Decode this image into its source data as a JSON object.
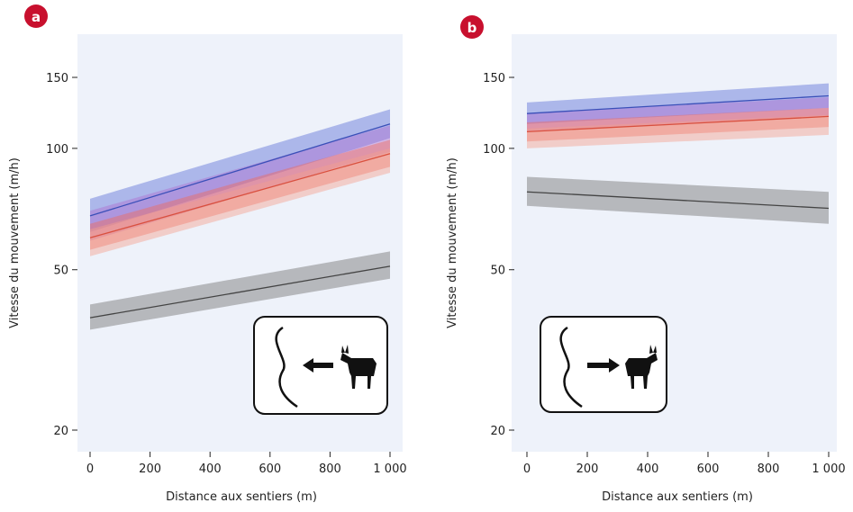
{
  "colors": {
    "blue": "#5a6fd8",
    "purple": "#b06fd0",
    "red": "#ef6a5a",
    "salmon": "#f3a08d",
    "gray": "#707070",
    "panel_bg": "#eef2fa",
    "badge": "#c8102e"
  },
  "chart_data": [
    {
      "panel_label": "a",
      "type": "line",
      "xlabel": "Distance aux sentiers (m)",
      "ylabel": "Vitesse du mouvement (m/h)",
      "x_ticks": [
        "0",
        "200",
        "400",
        "600",
        "800",
        "1 000"
      ],
      "y_ticks": [
        "20",
        "50",
        "100",
        "150"
      ],
      "y_scale": "log",
      "xlim": [
        0,
        1000
      ],
      "ylim": [
        17,
        200
      ],
      "inset_icon": "chamois-moving-toward-trail-icon",
      "series": [
        {
          "color": "#5a6fd8",
          "x": [
            0,
            1000
          ],
          "y": [
            68,
            115
          ],
          "lower": [
            62,
            106
          ],
          "upper": [
            75,
            125
          ]
        },
        {
          "color": "#b06fd0",
          "x": [
            0,
            1000
          ],
          "y": [
            64,
            106
          ],
          "lower": [
            59,
            98
          ],
          "upper": [
            70,
            114
          ]
        },
        {
          "color": "#ef6a5a",
          "x": [
            0,
            1000
          ],
          "y": [
            60,
            97
          ],
          "lower": [
            56,
            90
          ],
          "upper": [
            65,
            105
          ]
        },
        {
          "color": "#f3a08d",
          "x": [
            0,
            1000
          ],
          "y": [
            58,
            93
          ],
          "lower": [
            54,
            87
          ],
          "upper": [
            63,
            100
          ]
        },
        {
          "color": "#707070",
          "x": [
            0,
            1000
          ],
          "y": [
            38,
            51
          ],
          "lower": [
            35.5,
            47.5
          ],
          "upper": [
            41,
            55.5
          ]
        }
      ]
    },
    {
      "panel_label": "b",
      "type": "line",
      "xlabel": "Distance aux sentiers (m)",
      "ylabel": "Vitesse du mouvement (m/h)",
      "x_ticks": [
        "0",
        "200",
        "400",
        "600",
        "800",
        "1 000"
      ],
      "y_ticks": [
        "20",
        "50",
        "100",
        "150"
      ],
      "y_scale": "log",
      "xlim": [
        0,
        1000
      ],
      "ylim": [
        17,
        200
      ],
      "inset_icon": "chamois-moving-away-from-trail-icon",
      "series": [
        {
          "color": "#5a6fd8",
          "x": [
            0,
            1000
          ],
          "y": [
            122,
            135
          ],
          "lower": [
            115,
            126
          ],
          "upper": [
            130,
            145
          ]
        },
        {
          "color": "#b06fd0",
          "x": [
            0,
            1000
          ],
          "y": [
            116,
            127
          ],
          "lower": [
            110,
            120
          ],
          "upper": [
            122,
            134
          ]
        },
        {
          "color": "#ef6a5a",
          "x": [
            0,
            1000
          ],
          "y": [
            110,
            120
          ],
          "lower": [
            104,
            113
          ],
          "upper": [
            116,
            126
          ]
        },
        {
          "color": "#f3a08d",
          "x": [
            0,
            1000
          ],
          "y": [
            106,
            115
          ],
          "lower": [
            100,
            108
          ],
          "upper": [
            112,
            121
          ]
        },
        {
          "color": "#707070",
          "x": [
            0,
            1000
          ],
          "y": [
            78,
            71
          ],
          "lower": [
            72,
            65
          ],
          "upper": [
            85,
            78
          ]
        }
      ]
    }
  ]
}
